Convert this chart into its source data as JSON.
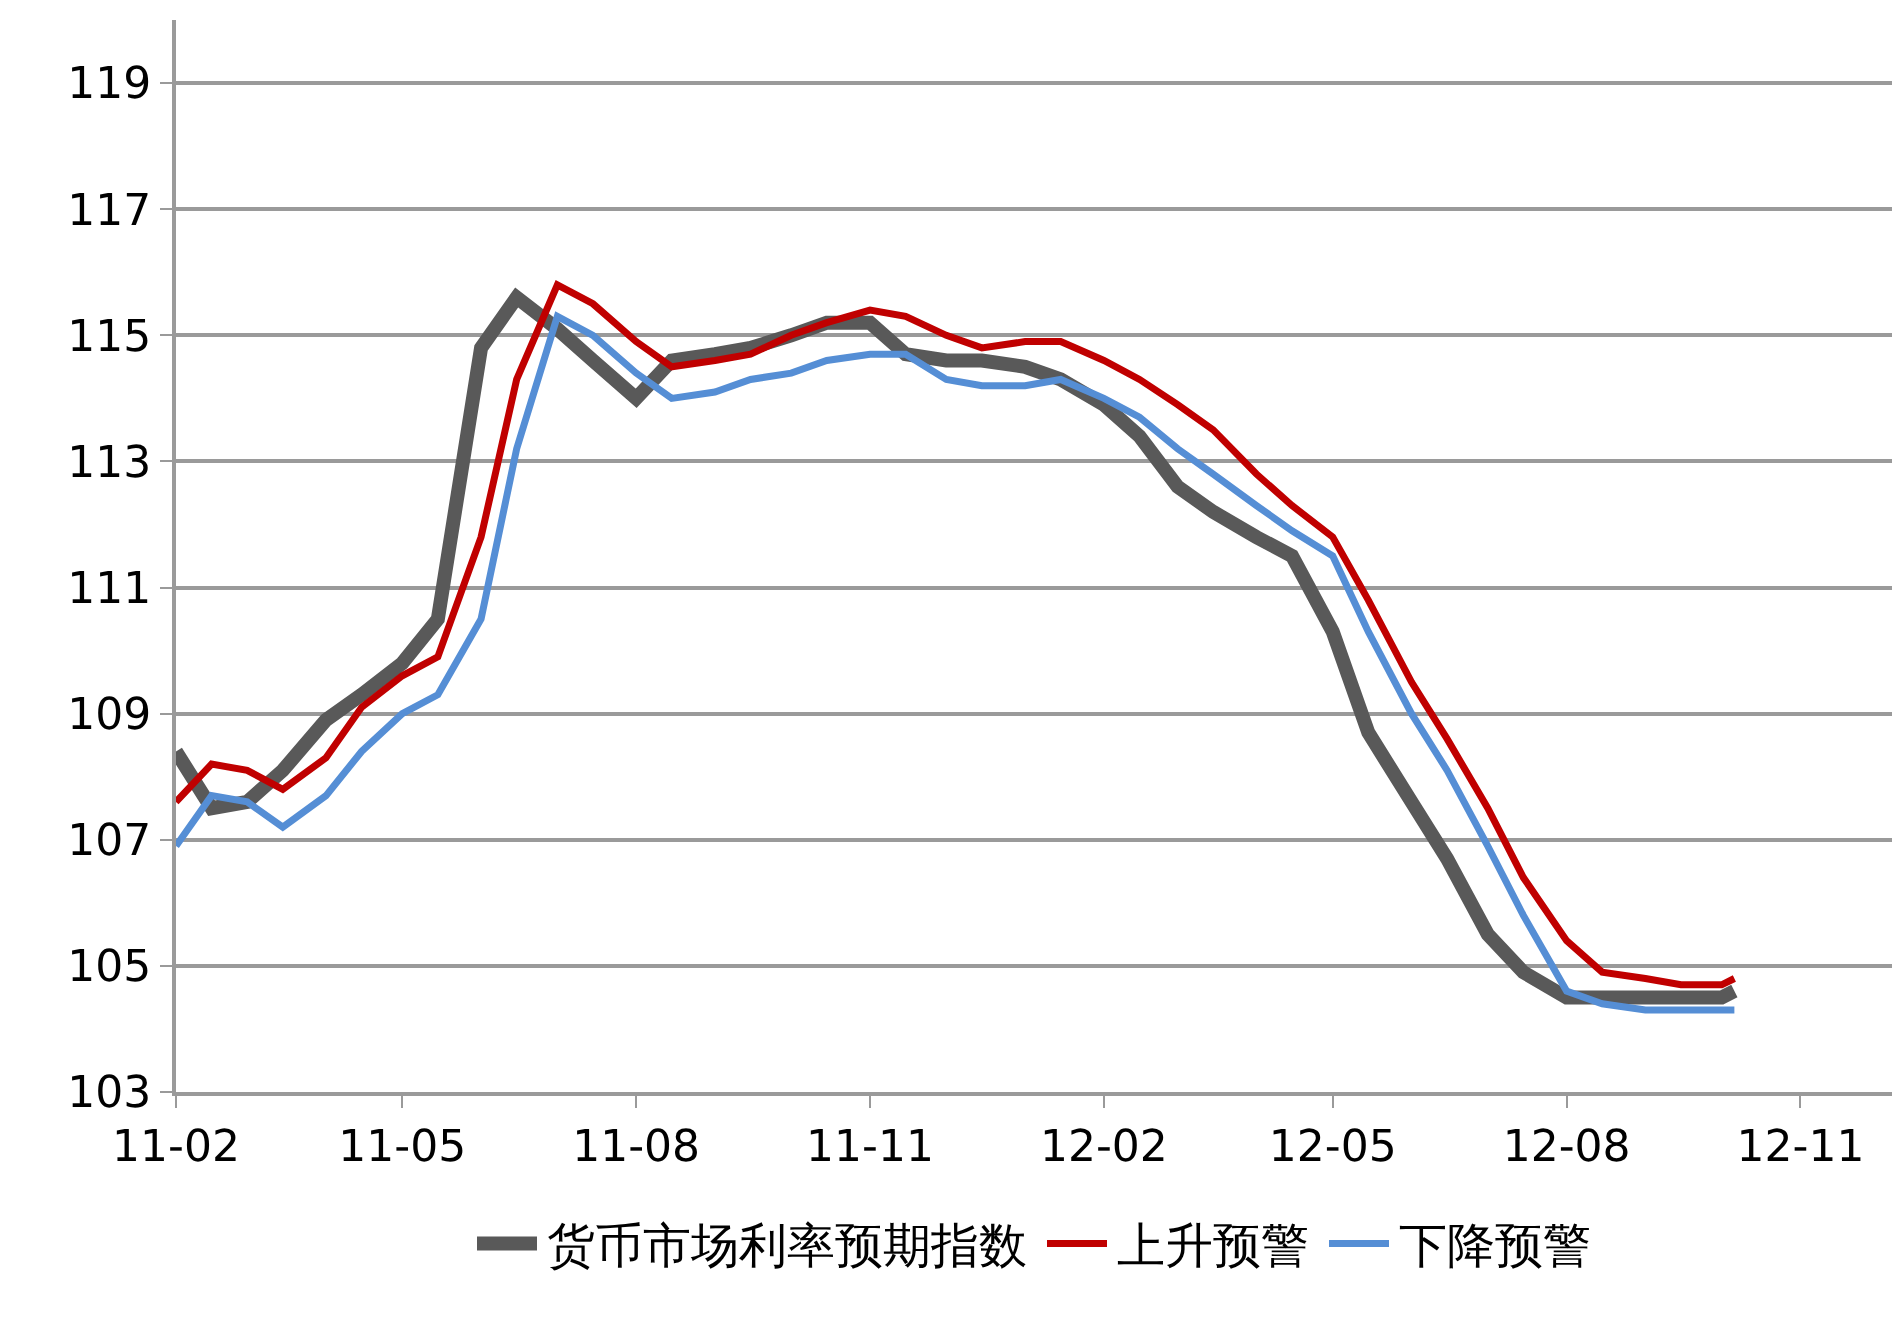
{
  "chart_data": {
    "type": "line",
    "x": [
      "2011-02-01",
      "2011-02-15",
      "2011-03-01",
      "2011-03-15",
      "2011-04-01",
      "2011-04-15",
      "2011-05-01",
      "2011-05-15",
      "2011-06-01",
      "2011-06-15",
      "2011-07-01",
      "2011-07-15",
      "2011-08-01",
      "2011-08-15",
      "2011-09-01",
      "2011-09-15",
      "2011-10-01",
      "2011-10-15",
      "2011-11-01",
      "2011-11-15",
      "2011-12-01",
      "2011-12-15",
      "2012-01-01",
      "2012-01-15",
      "2012-02-01",
      "2012-02-15",
      "2012-03-01",
      "2012-03-15",
      "2012-04-01",
      "2012-04-15",
      "2012-05-01",
      "2012-05-15",
      "2012-06-01",
      "2012-06-15",
      "2012-07-01",
      "2012-07-15",
      "2012-08-01",
      "2012-08-15",
      "2012-09-01",
      "2012-09-15",
      "2012-10-01",
      "2012-10-06"
    ],
    "series": [
      {
        "name": "货币市场利率预期指数",
        "color": "#595959",
        "values": [
          108.4,
          107.5,
          107.6,
          108.1,
          108.9,
          109.3,
          109.8,
          110.5,
          114.8,
          115.6,
          115.1,
          114.6,
          114.0,
          114.6,
          114.7,
          114.8,
          115.0,
          115.2,
          115.2,
          114.7,
          114.6,
          114.6,
          114.5,
          114.3,
          113.9,
          113.4,
          112.6,
          112.2,
          111.8,
          111.5,
          110.3,
          108.7,
          107.6,
          106.7,
          105.5,
          104.9,
          104.5,
          104.5,
          104.5,
          104.5,
          104.5,
          104.6
        ]
      },
      {
        "name": "上升预警",
        "color": "#c00000",
        "values": [
          107.6,
          108.2,
          108.1,
          107.8,
          108.3,
          109.1,
          109.6,
          109.9,
          111.8,
          114.3,
          115.8,
          115.5,
          114.9,
          114.5,
          114.6,
          114.7,
          115.0,
          115.2,
          115.4,
          115.3,
          115.0,
          114.8,
          114.9,
          114.9,
          114.6,
          114.3,
          113.9,
          113.5,
          112.8,
          112.3,
          111.8,
          110.8,
          109.5,
          108.6,
          107.5,
          106.4,
          105.4,
          104.9,
          104.8,
          104.7,
          104.7,
          104.8
        ]
      },
      {
        "name": "下降预警",
        "color": "#558ed5",
        "values": [
          106.9,
          107.7,
          107.6,
          107.2,
          107.7,
          108.4,
          109.0,
          109.3,
          110.5,
          113.2,
          115.3,
          115.0,
          114.4,
          114.0,
          114.1,
          114.3,
          114.4,
          114.6,
          114.7,
          114.7,
          114.3,
          114.2,
          114.2,
          114.3,
          114.0,
          113.7,
          113.2,
          112.8,
          112.3,
          111.9,
          111.5,
          110.3,
          109.0,
          108.1,
          106.9,
          105.8,
          104.6,
          104.4,
          104.3,
          104.3,
          104.3,
          104.3
        ]
      }
    ],
    "xlim": [
      "2011-02-01",
      "2012-12-07"
    ],
    "xticks": [
      {
        "value": "2011-02-01",
        "label": "11-02"
      },
      {
        "value": "2011-05-01",
        "label": "11-05"
      },
      {
        "value": "2011-08-01",
        "label": "11-08"
      },
      {
        "value": "2011-11-01",
        "label": "11-11"
      },
      {
        "value": "2012-02-01",
        "label": "12-02"
      },
      {
        "value": "2012-05-01",
        "label": "12-05"
      },
      {
        "value": "2012-08-01",
        "label": "12-08"
      },
      {
        "value": "2012-11-01",
        "label": "12-11"
      }
    ],
    "ylim": [
      103,
      120
    ],
    "yticks": [
      103,
      105,
      107,
      109,
      111,
      113,
      115,
      117,
      119
    ],
    "grid": "y",
    "legend": "bottom"
  }
}
